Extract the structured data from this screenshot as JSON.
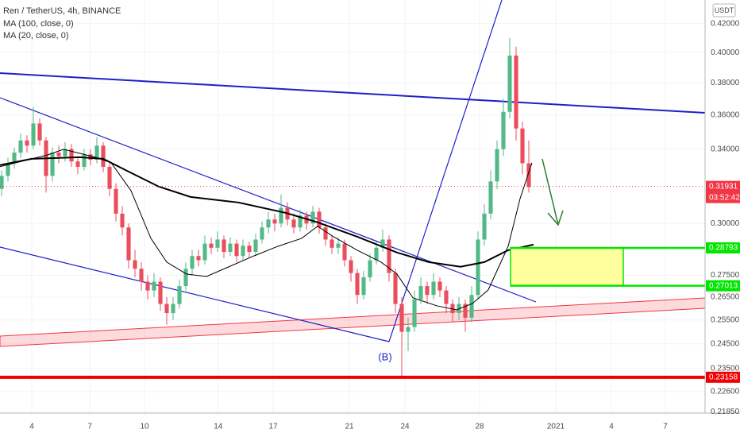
{
  "chart_data": {
    "type": "candlestick",
    "title": "Ren / TetherUS, 4h, BINANCE",
    "currency": "USDT",
    "log_scale": true,
    "grid": true,
    "up_color": "#53b987",
    "down_color": "#eb4d5c",
    "ylim": [
      0.218,
      0.437
    ],
    "xlim": [
      -0.25,
      110.75
    ],
    "yticks": [
      {
        "value": 0.42,
        "label": "0.42000"
      },
      {
        "value": 0.4,
        "label": "0.40000"
      },
      {
        "value": 0.38,
        "label": "0.38000"
      },
      {
        "value": 0.36,
        "label": "0.36000"
      },
      {
        "value": 0.34,
        "label": "0.34000"
      },
      {
        "value": 0.3,
        "label": "0.30000"
      },
      {
        "value": 0.275,
        "label": "0.27500"
      },
      {
        "value": 0.265,
        "label": "0.26500"
      },
      {
        "value": 0.255,
        "label": "0.25500"
      },
      {
        "value": 0.245,
        "label": "0.24500"
      },
      {
        "value": 0.235,
        "label": "0.23500"
      },
      {
        "value": 0.226,
        "label": "0.22600"
      },
      {
        "value": 0.2185,
        "label": "0.21850"
      }
    ],
    "xticks": [
      {
        "value": 4.75,
        "label": "4"
      },
      {
        "value": 13.9,
        "label": "7"
      },
      {
        "value": 22.5,
        "label": "10"
      },
      {
        "value": 34.1,
        "label": "14"
      },
      {
        "value": 42.75,
        "label": "17"
      },
      {
        "value": 54.75,
        "label": "21"
      },
      {
        "value": 63.5,
        "label": "24"
      },
      {
        "value": 75.25,
        "label": "28"
      },
      {
        "value": 87.25,
        "label": "2021"
      },
      {
        "value": 96,
        "label": "4"
      },
      {
        "value": 104.5,
        "label": "7"
      }
    ],
    "candles": [
      [
        0.318,
        0.328,
        0.314,
        0.325
      ],
      [
        0.325,
        0.335,
        0.322,
        0.332
      ],
      [
        0.332,
        0.341,
        0.329,
        0.338
      ],
      [
        0.338,
        0.349,
        0.335,
        0.345
      ],
      [
        0.345,
        0.348,
        0.338,
        0.342
      ],
      [
        0.342,
        0.365,
        0.34,
        0.355
      ],
      [
        0.355,
        0.358,
        0.342,
        0.345
      ],
      [
        0.345,
        0.347,
        0.316,
        0.325
      ],
      [
        0.325,
        0.341,
        0.322,
        0.338
      ],
      [
        0.338,
        0.342,
        0.332,
        0.336
      ],
      [
        0.336,
        0.344,
        0.333,
        0.34
      ],
      [
        0.34,
        0.343,
        0.33,
        0.333
      ],
      [
        0.333,
        0.336,
        0.326,
        0.33
      ],
      [
        0.33,
        0.34,
        0.328,
        0.337
      ],
      [
        0.337,
        0.34,
        0.331,
        0.334
      ],
      [
        0.334,
        0.347,
        0.332,
        0.342
      ],
      [
        0.342,
        0.344,
        0.327,
        0.33
      ],
      [
        0.33,
        0.332,
        0.314,
        0.318
      ],
      [
        0.318,
        0.321,
        0.301,
        0.305
      ],
      [
        0.305,
        0.309,
        0.294,
        0.298
      ],
      [
        0.298,
        0.3,
        0.278,
        0.282
      ],
      [
        0.282,
        0.287,
        0.274,
        0.278
      ],
      [
        0.278,
        0.281,
        0.268,
        0.272
      ],
      [
        0.272,
        0.275,
        0.264,
        0.268
      ],
      [
        0.268,
        0.276,
        0.265,
        0.272
      ],
      [
        0.272,
        0.274,
        0.259,
        0.262
      ],
      [
        0.262,
        0.265,
        0.253,
        0.258
      ],
      [
        0.258,
        0.265,
        0.255,
        0.262
      ],
      [
        0.262,
        0.273,
        0.26,
        0.27
      ],
      [
        0.27,
        0.281,
        0.268,
        0.278
      ],
      [
        0.278,
        0.287,
        0.275,
        0.284
      ],
      [
        0.284,
        0.287,
        0.279,
        0.282
      ],
      [
        0.282,
        0.294,
        0.28,
        0.29
      ],
      [
        0.29,
        0.293,
        0.285,
        0.288
      ],
      [
        0.288,
        0.296,
        0.286,
        0.292
      ],
      [
        0.292,
        0.294,
        0.283,
        0.286
      ],
      [
        0.286,
        0.293,
        0.284,
        0.29
      ],
      [
        0.29,
        0.292,
        0.281,
        0.284
      ],
      [
        0.284,
        0.292,
        0.282,
        0.289
      ],
      [
        0.289,
        0.291,
        0.283,
        0.286
      ],
      [
        0.286,
        0.295,
        0.284,
        0.292
      ],
      [
        0.292,
        0.301,
        0.29,
        0.298
      ],
      [
        0.298,
        0.306,
        0.295,
        0.302
      ],
      [
        0.302,
        0.305,
        0.296,
        0.3
      ],
      [
        0.3,
        0.315,
        0.298,
        0.308
      ],
      [
        0.308,
        0.311,
        0.299,
        0.302
      ],
      [
        0.302,
        0.305,
        0.295,
        0.298
      ],
      [
        0.298,
        0.307,
        0.296,
        0.304
      ],
      [
        0.304,
        0.306,
        0.297,
        0.3
      ],
      [
        0.3,
        0.309,
        0.298,
        0.306
      ],
      [
        0.306,
        0.308,
        0.295,
        0.298
      ],
      [
        0.298,
        0.3,
        0.289,
        0.292
      ],
      [
        0.292,
        0.294,
        0.285,
        0.288
      ],
      [
        0.288,
        0.293,
        0.285,
        0.29
      ],
      [
        0.29,
        0.292,
        0.279,
        0.282
      ],
      [
        0.282,
        0.284,
        0.272,
        0.276
      ],
      [
        0.276,
        0.278,
        0.262,
        0.266
      ],
      [
        0.266,
        0.277,
        0.264,
        0.274
      ],
      [
        0.274,
        0.285,
        0.272,
        0.282
      ],
      [
        0.282,
        0.291,
        0.28,
        0.288
      ],
      [
        0.288,
        0.297,
        0.286,
        0.292
      ],
      [
        0.292,
        0.294,
        0.272,
        0.276
      ],
      [
        0.276,
        0.278,
        0.258,
        0.262
      ],
      [
        0.262,
        0.265,
        0.2316,
        0.25
      ],
      [
        0.25,
        0.256,
        0.242,
        0.252
      ],
      [
        0.252,
        0.268,
        0.25,
        0.264
      ],
      [
        0.264,
        0.274,
        0.262,
        0.27
      ],
      [
        0.27,
        0.272,
        0.262,
        0.266
      ],
      [
        0.266,
        0.276,
        0.264,
        0.272
      ],
      [
        0.272,
        0.274,
        0.265,
        0.268
      ],
      [
        0.268,
        0.27,
        0.258,
        0.262
      ],
      [
        0.262,
        0.264,
        0.254,
        0.258
      ],
      [
        0.258,
        0.265,
        0.255,
        0.262
      ],
      [
        0.262,
        0.264,
        0.25,
        0.256
      ],
      [
        0.256,
        0.27,
        0.254,
        0.266
      ],
      [
        0.266,
        0.296,
        0.264,
        0.292
      ],
      [
        0.292,
        0.31,
        0.289,
        0.305
      ],
      [
        0.305,
        0.328,
        0.302,
        0.322
      ],
      [
        0.322,
        0.345,
        0.318,
        0.34
      ],
      [
        0.34,
        0.37,
        0.336,
        0.362
      ],
      [
        0.362,
        0.41,
        0.358,
        0.398
      ],
      [
        0.398,
        0.404,
        0.345,
        0.352
      ],
      [
        0.352,
        0.356,
        0.326,
        0.332
      ],
      [
        0.332,
        0.345,
        0.316,
        0.319
      ]
    ],
    "series": [
      {
        "name": "MA (100, close, 0)",
        "color": "#000000",
        "width": 2,
        "x": [
          -0.25,
          4.75,
          12.25,
          16,
          19.75,
          24.75,
          29.75,
          37.25,
          44.75,
          49.75,
          56,
          62.25,
          67.25,
          72.25,
          76,
          79.75,
          83.75
        ],
        "values": [
          0.331,
          0.3345,
          0.3354,
          0.3345,
          0.3278,
          0.3192,
          0.3137,
          0.3108,
          0.3054,
          0.3006,
          0.2934,
          0.2857,
          0.2811,
          0.2789,
          0.2811,
          0.2868,
          0.2895
        ]
      },
      {
        "name": "MA (20, close, 0)",
        "color": "#000000",
        "width": 1,
        "x": [
          -0.25,
          7.25,
          9.75,
          14.75,
          17.25,
          20.375,
          23.5,
          26,
          29.125,
          32.25,
          36,
          39.75,
          43.5,
          47.25,
          49.75,
          52.25,
          56,
          59.75,
          62.25,
          64.75,
          68.5,
          71.625,
          74.125,
          76.625,
          79.75,
          81.625,
          83.5
        ],
        "values": [
          0.3301,
          0.3367,
          0.3399,
          0.3354,
          0.3323,
          0.317,
          0.2926,
          0.2811,
          0.2755,
          0.2744,
          0.2792,
          0.2841,
          0.2887,
          0.2926,
          0.2986,
          0.2934,
          0.2868,
          0.2811,
          0.2755,
          0.2647,
          0.2612,
          0.2594,
          0.2622,
          0.2683,
          0.2887,
          0.3128,
          0.3323
        ]
      }
    ],
    "levels": [
      {
        "value": 0.31931,
        "color": "#f23645",
        "countdown": "03:52:42"
      },
      {
        "value": 0.28793,
        "color": "#00e600"
      },
      {
        "value": 0.27013,
        "color": "#00e600"
      },
      {
        "value": 0.23158,
        "color": "#f00000"
      }
    ],
    "annotations": [
      {
        "text": "(B)"
      }
    ]
  }
}
